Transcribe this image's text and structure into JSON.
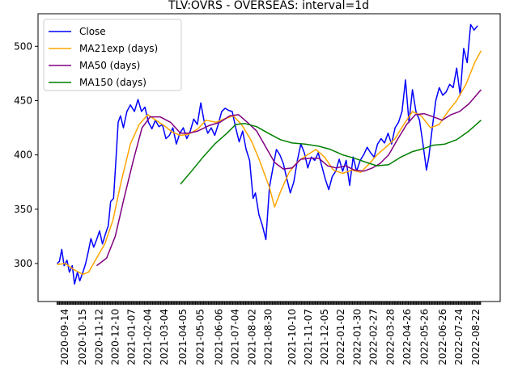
{
  "chart_data": {
    "type": "line",
    "title": "TLV:OVRS - OVERSEAS: interval=1d",
    "xlabel": "",
    "ylabel": "",
    "ylim": [
      265,
      530
    ],
    "yticks": [
      300,
      350,
      400,
      450,
      500
    ],
    "xticks": [
      "2020-09-14",
      "2020-10-15",
      "2020-11-12",
      "2020-12-10",
      "2021-01-07",
      "2021-02-04",
      "2021-03-04",
      "2021-04-05",
      "2021-05-05",
      "2021-06-06",
      "2021-07-04",
      "2021-08-02",
      "2021-08-30",
      "2021-10-10",
      "2021-11-07",
      "2021-12-05",
      "2022-01-02",
      "2022-01-30",
      "2022-02-27",
      "2022-03-28",
      "2022-04-26",
      "2022-05-26",
      "2022-06-26",
      "2022-07-24",
      "2022-08-22"
    ],
    "x_start": "2020-09-01",
    "x_end": "2022-08-31",
    "grid": false,
    "legend_position": "top-left",
    "series": [
      {
        "name": "Close",
        "color": "#0000ff",
        "points": [
          [
            "2020-09-01",
            300
          ],
          [
            "2020-09-05",
            302
          ],
          [
            "2020-09-09",
            313
          ],
          [
            "2020-09-13",
            298
          ],
          [
            "2020-09-18",
            303
          ],
          [
            "2020-09-22",
            292
          ],
          [
            "2020-09-27",
            298
          ],
          [
            "2020-10-01",
            281
          ],
          [
            "2020-10-06",
            292
          ],
          [
            "2020-10-10",
            284
          ],
          [
            "2020-10-16",
            293
          ],
          [
            "2020-10-20",
            300
          ],
          [
            "2020-10-25",
            312
          ],
          [
            "2020-10-29",
            323
          ],
          [
            "2020-11-03",
            315
          ],
          [
            "2020-11-08",
            322
          ],
          [
            "2020-11-13",
            330
          ],
          [
            "2020-11-18",
            318
          ],
          [
            "2020-11-23",
            327
          ],
          [
            "2020-11-28",
            335
          ],
          [
            "2020-12-02",
            357
          ],
          [
            "2020-12-07",
            360
          ],
          [
            "2020-12-11",
            395
          ],
          [
            "2020-12-15",
            430
          ],
          [
            "2020-12-19",
            436
          ],
          [
            "2020-12-24",
            425
          ],
          [
            "2020-12-30",
            440
          ],
          [
            "2021-01-05",
            446
          ],
          [
            "2021-01-12",
            440
          ],
          [
            "2021-01-18",
            451
          ],
          [
            "2021-01-24",
            440
          ],
          [
            "2021-01-30",
            444
          ],
          [
            "2021-02-05",
            430
          ],
          [
            "2021-02-11",
            424
          ],
          [
            "2021-02-17",
            432
          ],
          [
            "2021-02-23",
            426
          ],
          [
            "2021-03-01",
            428
          ],
          [
            "2021-03-07",
            415
          ],
          [
            "2021-03-13",
            418
          ],
          [
            "2021-03-19",
            425
          ],
          [
            "2021-03-25",
            410
          ],
          [
            "2021-03-31",
            420
          ],
          [
            "2021-04-06",
            425
          ],
          [
            "2021-04-12",
            415
          ],
          [
            "2021-04-18",
            422
          ],
          [
            "2021-04-24",
            433
          ],
          [
            "2021-04-30",
            428
          ],
          [
            "2021-05-06",
            448
          ],
          [
            "2021-05-12",
            430
          ],
          [
            "2021-05-18",
            420
          ],
          [
            "2021-05-24",
            425
          ],
          [
            "2021-05-30",
            418
          ],
          [
            "2021-06-05",
            428
          ],
          [
            "2021-06-11",
            440
          ],
          [
            "2021-06-17",
            443
          ],
          [
            "2021-06-23",
            441
          ],
          [
            "2021-06-29",
            440
          ],
          [
            "2021-07-05",
            425
          ],
          [
            "2021-07-11",
            412
          ],
          [
            "2021-07-17",
            422
          ],
          [
            "2021-07-23",
            405
          ],
          [
            "2021-07-29",
            395
          ],
          [
            "2021-08-04",
            360
          ],
          [
            "2021-08-08",
            365
          ],
          [
            "2021-08-14",
            345
          ],
          [
            "2021-08-20",
            335
          ],
          [
            "2021-08-26",
            322
          ],
          [
            "2021-09-01",
            370
          ],
          [
            "2021-09-07",
            388
          ],
          [
            "2021-09-13",
            405
          ],
          [
            "2021-09-19",
            400
          ],
          [
            "2021-09-25",
            392
          ],
          [
            "2021-10-01",
            378
          ],
          [
            "2021-10-07",
            365
          ],
          [
            "2021-10-13",
            375
          ],
          [
            "2021-10-19",
            395
          ],
          [
            "2021-10-25",
            410
          ],
          [
            "2021-10-31",
            402
          ],
          [
            "2021-11-06",
            388
          ],
          [
            "2021-11-12",
            398
          ],
          [
            "2021-11-18",
            395
          ],
          [
            "2021-11-24",
            402
          ],
          [
            "2021-11-30",
            390
          ],
          [
            "2021-12-06",
            378
          ],
          [
            "2021-12-12",
            368
          ],
          [
            "2021-12-18",
            380
          ],
          [
            "2021-12-24",
            385
          ],
          [
            "2021-12-30",
            396
          ],
          [
            "2022-01-05",
            385
          ],
          [
            "2022-01-11",
            395
          ],
          [
            "2022-01-17",
            372
          ],
          [
            "2022-01-23",
            398
          ],
          [
            "2022-01-29",
            385
          ],
          [
            "2022-02-04",
            395
          ],
          [
            "2022-02-10",
            400
          ],
          [
            "2022-02-16",
            407
          ],
          [
            "2022-02-22",
            402
          ],
          [
            "2022-02-28",
            398
          ],
          [
            "2022-03-06",
            410
          ],
          [
            "2022-03-12",
            415
          ],
          [
            "2022-03-18",
            411
          ],
          [
            "2022-03-24",
            420
          ],
          [
            "2022-03-30",
            410
          ],
          [
            "2022-04-05",
            425
          ],
          [
            "2022-04-11",
            430
          ],
          [
            "2022-04-17",
            440
          ],
          [
            "2022-04-23",
            469
          ],
          [
            "2022-04-29",
            430
          ],
          [
            "2022-05-05",
            460
          ],
          [
            "2022-05-11",
            440
          ],
          [
            "2022-05-17",
            432
          ],
          [
            "2022-05-23",
            410
          ],
          [
            "2022-05-29",
            386
          ],
          [
            "2022-06-02",
            398
          ],
          [
            "2022-06-08",
            425
          ],
          [
            "2022-06-14",
            450
          ],
          [
            "2022-06-20",
            462
          ],
          [
            "2022-06-26",
            455
          ],
          [
            "2022-07-02",
            458
          ],
          [
            "2022-07-08",
            465
          ],
          [
            "2022-07-14",
            462
          ],
          [
            "2022-07-20",
            480
          ],
          [
            "2022-07-26",
            455
          ],
          [
            "2022-08-01",
            498
          ],
          [
            "2022-08-07",
            485
          ],
          [
            "2022-08-13",
            520
          ],
          [
            "2022-08-19",
            515
          ],
          [
            "2022-08-25",
            519
          ]
        ]
      },
      {
        "name": "MA21exp (days)",
        "color": "#ffa500",
        "points": [
          [
            "2020-09-01",
            299
          ],
          [
            "2020-09-15",
            300
          ],
          [
            "2020-10-01",
            294
          ],
          [
            "2020-10-15",
            290
          ],
          [
            "2020-10-25",
            292
          ],
          [
            "2020-11-08",
            305
          ],
          [
            "2020-11-22",
            318
          ],
          [
            "2020-12-06",
            340
          ],
          [
            "2020-12-20",
            375
          ],
          [
            "2021-01-05",
            410
          ],
          [
            "2021-01-20",
            428
          ],
          [
            "2021-02-04",
            437
          ],
          [
            "2021-02-18",
            432
          ],
          [
            "2021-03-04",
            427
          ],
          [
            "2021-03-18",
            421
          ],
          [
            "2021-04-01",
            418
          ],
          [
            "2021-04-15",
            419
          ],
          [
            "2021-05-01",
            424
          ],
          [
            "2021-05-15",
            432
          ],
          [
            "2021-06-01",
            430
          ],
          [
            "2021-06-15",
            433
          ],
          [
            "2021-07-01",
            436
          ],
          [
            "2021-07-15",
            428
          ],
          [
            "2021-08-01",
            413
          ],
          [
            "2021-08-15",
            395
          ],
          [
            "2021-09-01",
            370
          ],
          [
            "2021-09-10",
            352
          ],
          [
            "2021-09-20",
            366
          ],
          [
            "2021-10-05",
            384
          ],
          [
            "2021-10-20",
            394
          ],
          [
            "2021-11-05",
            400
          ],
          [
            "2021-11-20",
            405
          ],
          [
            "2021-12-05",
            398
          ],
          [
            "2021-12-20",
            386
          ],
          [
            "2022-01-05",
            383
          ],
          [
            "2022-01-20",
            386
          ],
          [
            "2022-02-05",
            384
          ],
          [
            "2022-02-20",
            392
          ],
          [
            "2022-03-05",
            400
          ],
          [
            "2022-03-20",
            407
          ],
          [
            "2022-04-05",
            415
          ],
          [
            "2022-04-20",
            428
          ],
          [
            "2022-05-05",
            440
          ],
          [
            "2022-05-20",
            436
          ],
          [
            "2022-06-05",
            425
          ],
          [
            "2022-06-20",
            428
          ],
          [
            "2022-07-05",
            440
          ],
          [
            "2022-07-20",
            450
          ],
          [
            "2022-08-05",
            465
          ],
          [
            "2022-08-20",
            485
          ],
          [
            "2022-08-31",
            496
          ]
        ]
      },
      {
        "name": "MA50 (days)",
        "color": "#800080",
        "points": [
          [
            "2020-11-08",
            298
          ],
          [
            "2020-11-25",
            305
          ],
          [
            "2020-12-10",
            325
          ],
          [
            "2020-12-25",
            360
          ],
          [
            "2021-01-10",
            395
          ],
          [
            "2021-01-25",
            425
          ],
          [
            "2021-02-08",
            435
          ],
          [
            "2021-02-25",
            435
          ],
          [
            "2021-03-15",
            430
          ],
          [
            "2021-04-01",
            420
          ],
          [
            "2021-04-15",
            420
          ],
          [
            "2021-05-01",
            422
          ],
          [
            "2021-05-20",
            427
          ],
          [
            "2021-06-08",
            430
          ],
          [
            "2021-06-25",
            436
          ],
          [
            "2021-07-10",
            437
          ],
          [
            "2021-07-25",
            430
          ],
          [
            "2021-08-10",
            422
          ],
          [
            "2021-08-25",
            408
          ],
          [
            "2021-09-10",
            393
          ],
          [
            "2021-09-25",
            387
          ],
          [
            "2021-10-10",
            388
          ],
          [
            "2021-10-25",
            396
          ],
          [
            "2021-11-10",
            397
          ],
          [
            "2021-11-25",
            397
          ],
          [
            "2021-12-10",
            390
          ],
          [
            "2021-12-25",
            388
          ],
          [
            "2022-01-10",
            390
          ],
          [
            "2022-01-25",
            386
          ],
          [
            "2022-02-10",
            385
          ],
          [
            "2022-02-25",
            388
          ],
          [
            "2022-03-10",
            392
          ],
          [
            "2022-03-25",
            400
          ],
          [
            "2022-04-10",
            415
          ],
          [
            "2022-04-25",
            428
          ],
          [
            "2022-05-10",
            437
          ],
          [
            "2022-05-25",
            438
          ],
          [
            "2022-06-10",
            435
          ],
          [
            "2022-06-25",
            432
          ],
          [
            "2022-07-10",
            437
          ],
          [
            "2022-07-25",
            440
          ],
          [
            "2022-08-10",
            447
          ],
          [
            "2022-08-31",
            460
          ]
        ]
      },
      {
        "name": "MA150 (days)",
        "color": "#008000",
        "points": [
          [
            "2021-04-01",
            373
          ],
          [
            "2021-04-20",
            385
          ],
          [
            "2021-05-10",
            398
          ],
          [
            "2021-05-30",
            410
          ],
          [
            "2021-06-20",
            420
          ],
          [
            "2021-07-05",
            428
          ],
          [
            "2021-07-20",
            429
          ],
          [
            "2021-08-10",
            426
          ],
          [
            "2021-08-30",
            420
          ],
          [
            "2021-09-20",
            414
          ],
          [
            "2021-10-10",
            411
          ],
          [
            "2021-11-01",
            410
          ],
          [
            "2021-11-25",
            408
          ],
          [
            "2021-12-15",
            405
          ],
          [
            "2022-01-05",
            400
          ],
          [
            "2022-01-25",
            397
          ],
          [
            "2022-02-15",
            393
          ],
          [
            "2022-03-05",
            390
          ],
          [
            "2022-03-25",
            391
          ],
          [
            "2022-04-15",
            398
          ],
          [
            "2022-05-05",
            403
          ],
          [
            "2022-05-25",
            406
          ],
          [
            "2022-06-10",
            409
          ],
          [
            "2022-06-30",
            410
          ],
          [
            "2022-07-20",
            414
          ],
          [
            "2022-08-10",
            422
          ],
          [
            "2022-08-31",
            432
          ]
        ]
      }
    ]
  }
}
